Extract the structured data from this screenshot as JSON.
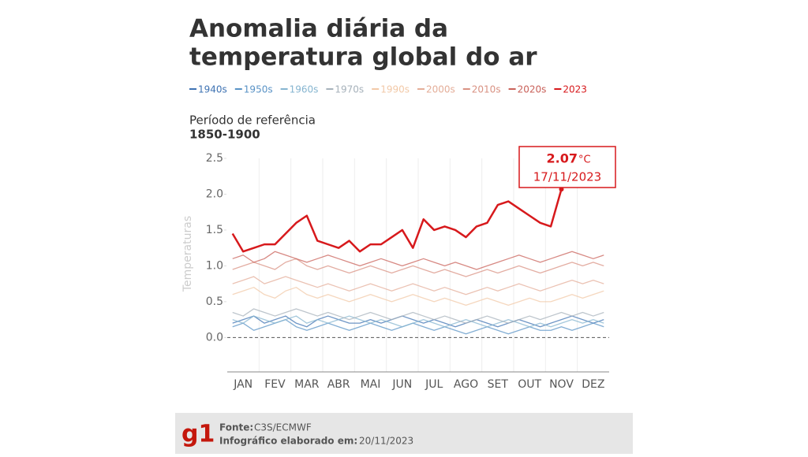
{
  "chart_data": {
    "type": "line",
    "title": [
      "Anomalia diária da",
      "temperatura global do ar"
    ],
    "subtitle": [
      "Período de referência",
      "1850-1900"
    ],
    "y_label": "Temperaturas",
    "categories": [
      null,
      "JAN",
      null,
      null,
      "FEV",
      null,
      null,
      "MAR",
      null,
      null,
      "ABR",
      null,
      null,
      "MAI",
      null,
      null,
      "JUN",
      null,
      null,
      "JUL",
      null,
      null,
      "AGO",
      null,
      null,
      "SET",
      null,
      null,
      "OUT",
      null,
      null,
      "NOV",
      null,
      null,
      "DEZ",
      null
    ],
    "ylim": [
      -0.48,
      2.5
    ],
    "yticks": [
      {
        "value": 0,
        "label": "0.0"
      },
      0.5,
      {
        "value": 1,
        "label": "1.0"
      },
      1.5,
      {
        "value": 2,
        "label": "2.0"
      },
      2.5
    ],
    "zero_line": true,
    "series": [
      {
        "name": "1940s",
        "color": "#3f73b3",
        "values": [
          0.2,
          0.25,
          0.3,
          0.2,
          0.25,
          0.3,
          0.2,
          0.15,
          0.25,
          0.3,
          0.25,
          0.2,
          0.2,
          0.25,
          0.2,
          0.25,
          0.3,
          0.25,
          0.2,
          0.25,
          0.2,
          0.15,
          0.2,
          0.25,
          0.2,
          0.15,
          0.2,
          0.25,
          0.2,
          0.15,
          0.2,
          0.25,
          0.3,
          0.25,
          0.2,
          0.25
        ]
      },
      {
        "name": "1950s",
        "color": "#5a93c6",
        "values": [
          0.15,
          0.2,
          0.1,
          0.15,
          0.2,
          0.25,
          0.15,
          0.1,
          0.15,
          0.2,
          0.15,
          0.1,
          0.15,
          0.2,
          0.15,
          0.1,
          0.15,
          0.2,
          0.15,
          0.1,
          0.15,
          0.1,
          0.05,
          0.1,
          0.15,
          0.1,
          0.05,
          0.1,
          0.15,
          0.1,
          0.1,
          0.15,
          0.1,
          0.15,
          0.2,
          0.15
        ]
      },
      {
        "name": "1960s",
        "color": "#86b5d0",
        "values": [
          0.25,
          0.2,
          0.3,
          0.25,
          0.2,
          0.25,
          0.3,
          0.2,
          0.25,
          0.2,
          0.25,
          0.3,
          0.25,
          0.2,
          0.25,
          0.2,
          0.15,
          0.2,
          0.25,
          0.2,
          0.15,
          0.2,
          0.25,
          0.2,
          0.15,
          0.2,
          0.25,
          0.2,
          0.15,
          0.2,
          0.15,
          0.2,
          0.25,
          0.2,
          0.25,
          0.2
        ]
      },
      {
        "name": "1970s",
        "color": "#a7b2bb",
        "values": [
          0.35,
          0.3,
          0.4,
          0.35,
          0.3,
          0.35,
          0.4,
          0.35,
          0.3,
          0.35,
          0.3,
          0.25,
          0.3,
          0.35,
          0.3,
          0.25,
          0.3,
          0.35,
          0.3,
          0.25,
          0.3,
          0.25,
          0.2,
          0.25,
          0.3,
          0.25,
          0.2,
          0.25,
          0.3,
          0.25,
          0.3,
          0.35,
          0.3,
          0.35,
          0.3,
          0.35
        ]
      },
      {
        "name": "1990s",
        "color": "#f2c9a8",
        "values": [
          0.6,
          0.65,
          0.7,
          0.6,
          0.55,
          0.65,
          0.7,
          0.6,
          0.55,
          0.6,
          0.55,
          0.5,
          0.55,
          0.6,
          0.55,
          0.5,
          0.55,
          0.6,
          0.55,
          0.5,
          0.55,
          0.5,
          0.45,
          0.5,
          0.55,
          0.5,
          0.45,
          0.5,
          0.55,
          0.5,
          0.5,
          0.55,
          0.6,
          0.55,
          0.6,
          0.65
        ]
      },
      {
        "name": "2000s",
        "color": "#e4ae99",
        "values": [
          0.75,
          0.8,
          0.85,
          0.75,
          0.8,
          0.85,
          0.8,
          0.75,
          0.7,
          0.75,
          0.7,
          0.65,
          0.7,
          0.75,
          0.7,
          0.65,
          0.7,
          0.75,
          0.7,
          0.65,
          0.7,
          0.65,
          0.6,
          0.65,
          0.7,
          0.65,
          0.7,
          0.75,
          0.7,
          0.65,
          0.7,
          0.75,
          0.8,
          0.75,
          0.8,
          0.75
        ]
      },
      {
        "name": "2010s",
        "color": "#d99283",
        "values": [
          0.95,
          1.0,
          1.05,
          1.0,
          0.95,
          1.05,
          1.1,
          1.0,
          0.95,
          1.0,
          0.95,
          0.9,
          0.95,
          1.0,
          0.95,
          0.9,
          0.95,
          1.0,
          0.95,
          0.9,
          0.95,
          0.9,
          0.85,
          0.9,
          0.95,
          0.9,
          0.95,
          1.0,
          0.95,
          0.9,
          0.95,
          1.0,
          1.05,
          1.0,
          1.05,
          1.0
        ]
      },
      {
        "name": "2020s",
        "color": "#c9615a",
        "values": [
          1.1,
          1.15,
          1.05,
          1.1,
          1.2,
          1.15,
          1.1,
          1.05,
          1.1,
          1.15,
          1.1,
          1.05,
          1.0,
          1.05,
          1.1,
          1.05,
          1.0,
          1.05,
          1.1,
          1.05,
          1.0,
          1.05,
          1.0,
          0.95,
          1.0,
          1.05,
          1.1,
          1.15,
          1.1,
          1.05,
          1.1,
          1.15,
          1.2,
          1.15,
          1.1,
          1.15
        ]
      },
      {
        "name": "2023",
        "color": "#d7191c",
        "values": [
          1.45,
          1.2,
          1.25,
          1.3,
          1.3,
          1.45,
          1.6,
          1.7,
          1.35,
          1.3,
          1.25,
          1.35,
          1.2,
          1.3,
          1.3,
          1.4,
          1.5,
          1.25,
          1.65,
          1.5,
          1.55,
          1.5,
          1.4,
          1.55,
          1.6,
          1.85,
          1.9,
          1.8,
          1.7,
          1.6,
          1.55,
          2.07,
          null,
          null,
          null,
          null
        ]
      }
    ],
    "annotation": {
      "unit": "°C",
      "date": "17/11/2023"
    },
    "footer": {
      "source_label": "Fonte:",
      "source": "C3S/ECMWF",
      "date_label": "Infográfico elaborado em:",
      "date": "20/11/2023",
      "logo": "g1"
    }
  }
}
